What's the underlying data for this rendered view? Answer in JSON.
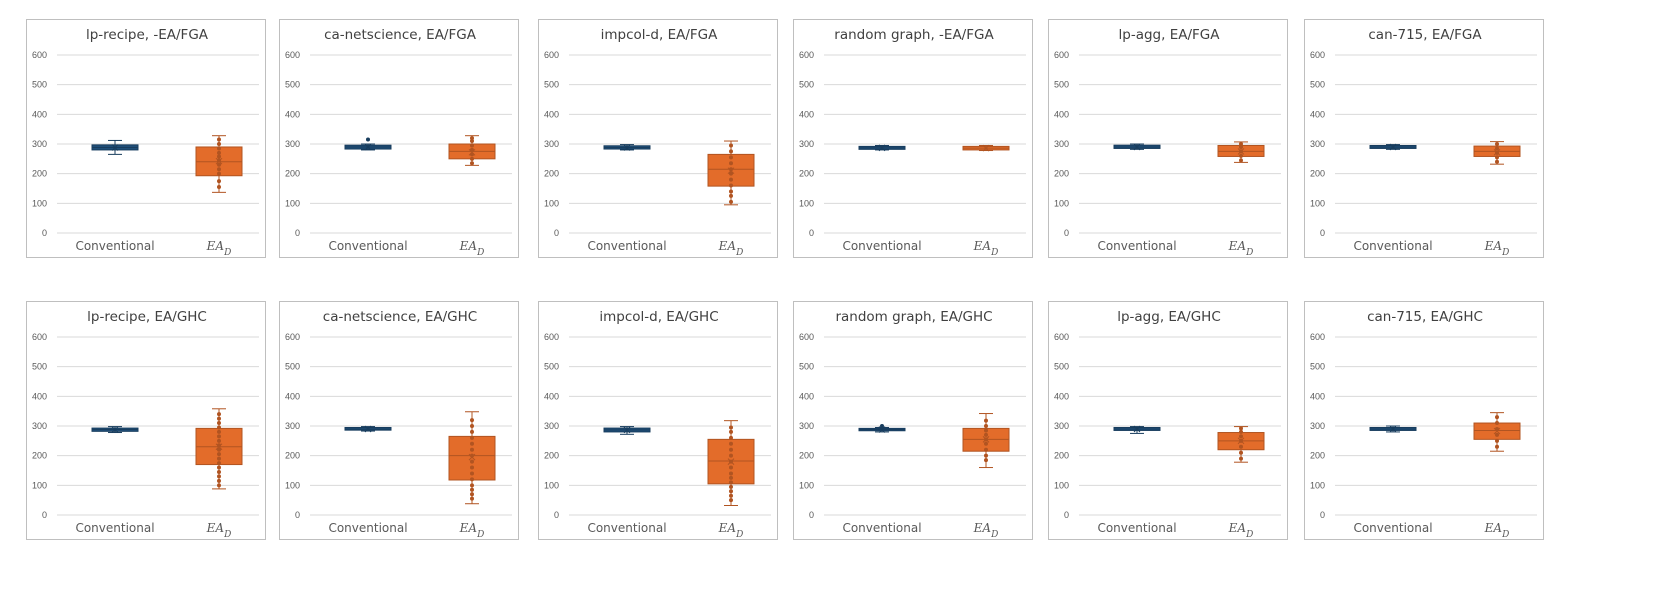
{
  "chart_data": [
    {
      "type": "box",
      "title": "lp-recipe, -EA/FGA",
      "categories": [
        "Conventional",
        "EA_D"
      ],
      "ylim": [
        0,
        600
      ],
      "yticks": [
        0,
        100,
        200,
        300,
        400,
        500,
        600
      ],
      "series": [
        {
          "name": "Conventional",
          "color": "#1f4e79",
          "min": 265,
          "q1": 280,
          "median": 288,
          "q3": 297,
          "max": 312,
          "mean": 288,
          "points": []
        },
        {
          "name": "EA_D",
          "color": "#e36c2a",
          "min": 137,
          "q1": 193,
          "median": 240,
          "q3": 290,
          "max": 328,
          "mean": 242,
          "points": [
            155,
            175,
            200,
            215,
            230,
            245,
            258,
            270,
            285,
            300,
            315
          ]
        }
      ]
    },
    {
      "type": "box",
      "title": "ca-netscience, EA/FGA",
      "categories": [
        "Conventional",
        "EA_D"
      ],
      "ylim": [
        0,
        600
      ],
      "yticks": [
        0,
        100,
        200,
        300,
        400,
        500,
        600
      ],
      "series": [
        {
          "name": "Conventional",
          "color": "#1f4e79",
          "min": 280,
          "q1": 283,
          "median": 290,
          "q3": 296,
          "max": 300,
          "mean": 290,
          "points": [
            315
          ]
        },
        {
          "name": "EA_D",
          "color": "#e36c2a",
          "min": 228,
          "q1": 250,
          "median": 275,
          "q3": 300,
          "max": 328,
          "mean": 272,
          "points": [
            235,
            250,
            265,
            280,
            295,
            310,
            320
          ]
        }
      ]
    },
    {
      "type": "box",
      "title": "impcol-d, EA/FGA",
      "categories": [
        "Conventional",
        "EA_D"
      ],
      "ylim": [
        0,
        600
      ],
      "yticks": [
        0,
        100,
        200,
        300,
        400,
        500,
        600
      ],
      "series": [
        {
          "name": "Conventional",
          "color": "#1f4e79",
          "min": 280,
          "q1": 283,
          "median": 288,
          "q3": 294,
          "max": 298,
          "mean": 288,
          "points": []
        },
        {
          "name": "EA_D",
          "color": "#e36c2a",
          "min": 95,
          "q1": 158,
          "median": 215,
          "q3": 265,
          "max": 310,
          "mean": 210,
          "points": [
            105,
            125,
            140,
            160,
            180,
            200,
            215,
            235,
            255,
            275,
            295
          ]
        }
      ]
    },
    {
      "type": "box",
      "title": "random graph, -EA/FGA",
      "categories": [
        "Conventional",
        "EA_D"
      ],
      "ylim": [
        0,
        600
      ],
      "yticks": [
        0,
        100,
        200,
        300,
        400,
        500,
        600
      ],
      "series": [
        {
          "name": "Conventional",
          "color": "#1f4e79",
          "min": 280,
          "q1": 282,
          "median": 287,
          "q3": 292,
          "max": 295,
          "mean": 287,
          "points": []
        },
        {
          "name": "EA_D",
          "color": "#e36c2a",
          "min": 278,
          "q1": 280,
          "median": 286,
          "q3": 292,
          "max": 295,
          "mean": 286,
          "points": []
        }
      ]
    },
    {
      "type": "box",
      "title": "lp-agg, EA/FGA",
      "categories": [
        "Conventional",
        "EA_D"
      ],
      "ylim": [
        0,
        600
      ],
      "yticks": [
        0,
        100,
        200,
        300,
        400,
        500,
        600
      ],
      "series": [
        {
          "name": "Conventional",
          "color": "#1f4e79",
          "min": 282,
          "q1": 285,
          "median": 290,
          "q3": 296,
          "max": 300,
          "mean": 290,
          "points": []
        },
        {
          "name": "EA_D",
          "color": "#e36c2a",
          "min": 238,
          "q1": 258,
          "median": 275,
          "q3": 295,
          "max": 307,
          "mean": 275,
          "points": [
            245,
            260,
            275,
            290,
            300
          ]
        }
      ]
    },
    {
      "type": "box",
      "title": "can-715, EA/FGA",
      "categories": [
        "Conventional",
        "EA_D"
      ],
      "ylim": [
        0,
        600
      ],
      "yticks": [
        0,
        100,
        200,
        300,
        400,
        500,
        600
      ],
      "series": [
        {
          "name": "Conventional",
          "color": "#1f4e79",
          "min": 282,
          "q1": 285,
          "median": 290,
          "q3": 295,
          "max": 298,
          "mean": 290,
          "points": []
        },
        {
          "name": "EA_D",
          "color": "#e36c2a",
          "min": 232,
          "q1": 258,
          "median": 275,
          "q3": 293,
          "max": 308,
          "mean": 272,
          "points": [
            240,
            255,
            270,
            285,
            300
          ]
        }
      ]
    },
    {
      "type": "box",
      "title": "lp-recipe, EA/GHC",
      "categories": [
        "Conventional",
        "EA_D"
      ],
      "ylim": [
        0,
        600
      ],
      "yticks": [
        0,
        100,
        200,
        300,
        400,
        500,
        600
      ],
      "series": [
        {
          "name": "Conventional",
          "color": "#1f4e79",
          "min": 278,
          "q1": 282,
          "median": 288,
          "q3": 293,
          "max": 298,
          "mean": 288,
          "points": []
        },
        {
          "name": "EA_D",
          "color": "#e36c2a",
          "min": 88,
          "q1": 170,
          "median": 230,
          "q3": 292,
          "max": 358,
          "mean": 230,
          "points": [
            100,
            115,
            130,
            145,
            160,
            175,
            190,
            205,
            220,
            235,
            250,
            265,
            280,
            295,
            310,
            325,
            340
          ]
        }
      ]
    },
    {
      "type": "box",
      "title": "ca-netscience, EA/GHC",
      "categories": [
        "Conventional",
        "EA_D"
      ],
      "ylim": [
        0,
        600
      ],
      "yticks": [
        0,
        100,
        200,
        300,
        400,
        500,
        600
      ],
      "series": [
        {
          "name": "Conventional",
          "color": "#1f4e79",
          "min": 283,
          "q1": 286,
          "median": 290,
          "q3": 295,
          "max": 298,
          "mean": 290,
          "points": []
        },
        {
          "name": "EA_D",
          "color": "#e36c2a",
          "min": 38,
          "q1": 118,
          "median": 200,
          "q3": 265,
          "max": 348,
          "mean": 195,
          "points": [
            55,
            70,
            85,
            100,
            120,
            140,
            160,
            180,
            200,
            220,
            240,
            260,
            280,
            300,
            320
          ]
        }
      ]
    },
    {
      "type": "box",
      "title": "impcol-d, EA/GHC",
      "categories": [
        "Conventional",
        "EA_D"
      ],
      "ylim": [
        0,
        600
      ],
      "yticks": [
        0,
        100,
        200,
        300,
        400,
        500,
        600
      ],
      "series": [
        {
          "name": "Conventional",
          "color": "#1f4e79",
          "min": 272,
          "q1": 280,
          "median": 287,
          "q3": 293,
          "max": 298,
          "mean": 287,
          "points": []
        },
        {
          "name": "EA_D",
          "color": "#e36c2a",
          "min": 32,
          "q1": 105,
          "median": 182,
          "q3": 255,
          "max": 318,
          "mean": 180,
          "points": [
            50,
            65,
            80,
            95,
            110,
            125,
            140,
            160,
            180,
            200,
            220,
            240,
            260,
            280,
            295
          ]
        }
      ]
    },
    {
      "type": "box",
      "title": "random graph, EA/GHC",
      "categories": [
        "Conventional",
        "EA_D"
      ],
      "ylim": [
        0,
        600
      ],
      "yticks": [
        0,
        100,
        200,
        300,
        400,
        500,
        600
      ],
      "series": [
        {
          "name": "Conventional",
          "color": "#1f4e79",
          "min": 280,
          "q1": 284,
          "median": 288,
          "q3": 292,
          "max": 295,
          "mean": 288,
          "points": [
            300
          ]
        },
        {
          "name": "EA_D",
          "color": "#e36c2a",
          "min": 160,
          "q1": 215,
          "median": 255,
          "q3": 292,
          "max": 342,
          "mean": 255,
          "points": [
            185,
            200,
            220,
            240,
            255,
            270,
            285,
            300,
            318
          ]
        }
      ]
    },
    {
      "type": "box",
      "title": "lp-agg, EA/GHC",
      "categories": [
        "Conventional",
        "EA_D"
      ],
      "ylim": [
        0,
        600
      ],
      "yticks": [
        0,
        100,
        200,
        300,
        400,
        500,
        600
      ],
      "series": [
        {
          "name": "Conventional",
          "color": "#1f4e79",
          "min": 275,
          "q1": 285,
          "median": 290,
          "q3": 295,
          "max": 298,
          "mean": 290,
          "points": []
        },
        {
          "name": "EA_D",
          "color": "#e36c2a",
          "min": 178,
          "q1": 220,
          "median": 250,
          "q3": 278,
          "max": 298,
          "mean": 250,
          "points": [
            190,
            210,
            230,
            250,
            265,
            280,
            292
          ]
        }
      ]
    },
    {
      "type": "box",
      "title": "can-715, EA/GHC",
      "categories": [
        "Conventional",
        "EA_D"
      ],
      "ylim": [
        0,
        600
      ],
      "yticks": [
        0,
        100,
        200,
        300,
        400,
        500,
        600
      ],
      "series": [
        {
          "name": "Conventional",
          "color": "#1f4e79",
          "min": 280,
          "q1": 285,
          "median": 290,
          "q3": 295,
          "max": 300,
          "mean": 290,
          "points": []
        },
        {
          "name": "EA_D",
          "color": "#e36c2a",
          "min": 215,
          "q1": 255,
          "median": 285,
          "q3": 310,
          "max": 345,
          "mean": 283,
          "points": [
            230,
            250,
            270,
            290,
            310,
            330
          ]
        }
      ]
    }
  ]
}
